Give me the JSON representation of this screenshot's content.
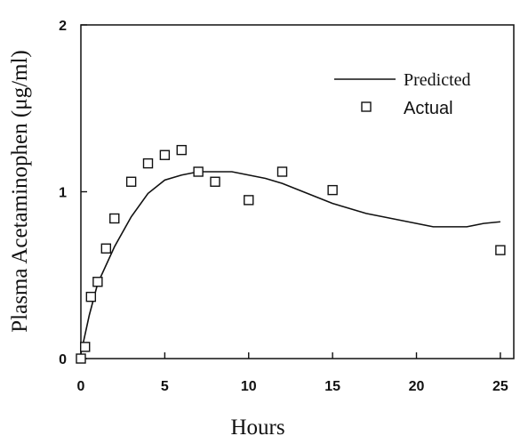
{
  "chart_data": {
    "type": "line",
    "title": "",
    "xlabel": "Hours",
    "ylabel": "Plasma Acetaminophen (μg/ml)",
    "xlim": [
      0,
      25.8
    ],
    "ylim": [
      0,
      2
    ],
    "x_ticks": [
      "0",
      "5",
      "10",
      "15",
      "20",
      "25"
    ],
    "y_ticks": [
      "0",
      "1",
      "2"
    ],
    "grid": false,
    "legend_position": "top-right",
    "series": [
      {
        "name": "Predicted",
        "kind": "line",
        "x": [
          0,
          0.5,
          1,
          2,
          3,
          4,
          5,
          6,
          7,
          8,
          9,
          10,
          11,
          12,
          13,
          14,
          15,
          16,
          17,
          18,
          19,
          20,
          21,
          22,
          23,
          24,
          25
        ],
        "y": [
          0.03,
          0.26,
          0.45,
          0.67,
          0.85,
          0.99,
          1.07,
          1.1,
          1.12,
          1.12,
          1.12,
          1.1,
          1.08,
          1.05,
          1.01,
          0.97,
          0.93,
          0.9,
          0.87,
          0.85,
          0.83,
          0.81,
          0.79,
          0.79,
          0.79,
          0.81,
          0.82
        ]
      },
      {
        "name": "Actual",
        "kind": "scatter",
        "x": [
          0,
          0.25,
          0.6,
          1,
          1.5,
          2,
          3,
          4,
          5,
          6,
          7,
          8,
          10,
          12,
          15,
          25
        ],
        "y": [
          0.0,
          0.07,
          0.37,
          0.46,
          0.66,
          0.84,
          1.06,
          1.17,
          1.22,
          1.25,
          1.12,
          1.06,
          0.95,
          1.12,
          1.01,
          0.65
        ]
      }
    ]
  }
}
